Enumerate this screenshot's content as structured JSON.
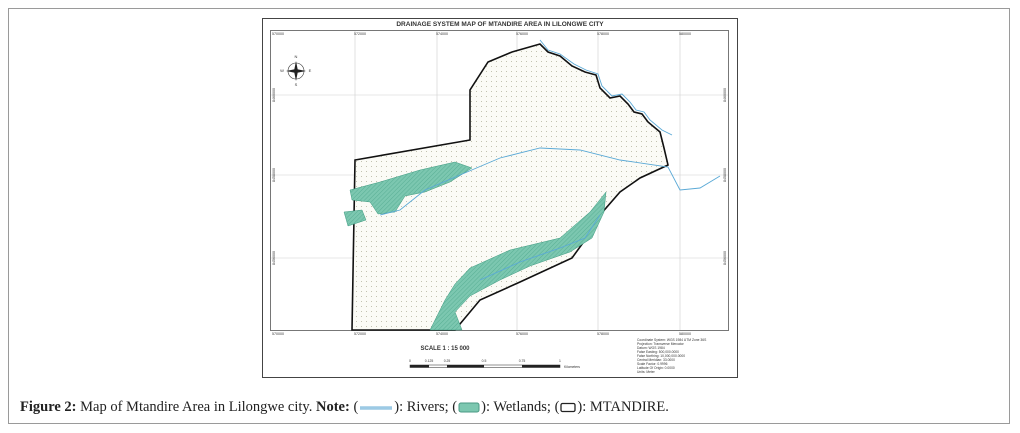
{
  "map": {
    "title": "DRAINAGE SYSTEM MAP OF MTANDIRE AREA IN LILONGWE CITY",
    "x_labels": [
      "570000",
      "572000",
      "574000",
      "576000",
      "578000",
      "580000"
    ],
    "y_labels": [
      "8460000",
      "8458000",
      "8456000"
    ],
    "compass": [
      "N",
      "E",
      "S",
      "W"
    ],
    "scale": "SCALE 1 : 15 000",
    "scale_bar": [
      "0",
      "0.125",
      "0.25",
      "0.5",
      "0.75",
      "1",
      "Kilometers"
    ],
    "metadata": [
      "Coordinate System: WGS 1984 UTM Zone 36S",
      "Projection: Transverse Mercator",
      "Datum: WGS 1984",
      "False Easting: 500,000.0000",
      "False Northing: 10,000,000.0000",
      "Central Meridian: 33.0000",
      "Scale Factor: 0.9996",
      "Latitude Of Origin: 0.0000",
      "Units: Meter"
    ]
  },
  "caption": {
    "label": "Figure 2:",
    "text": "Map of Mtandire Area in Lilongwe city.",
    "note_label": "Note:",
    "parts": [
      "(",
      "): Rivers; (",
      "): Wetlands; (",
      "): MTANDIRE."
    ]
  }
}
